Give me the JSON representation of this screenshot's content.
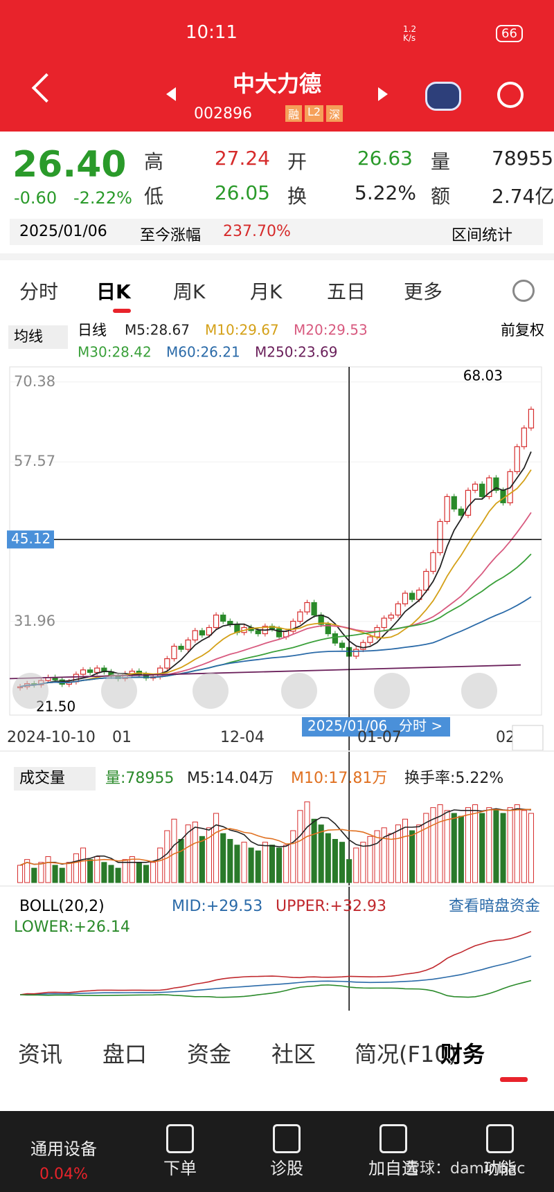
{
  "status": {
    "time": "10:11",
    "speed": "1.2 K/s",
    "battery": "66"
  },
  "header": {
    "title": "中大力德",
    "code": "002896",
    "tags": [
      "融",
      "L2",
      "深"
    ]
  },
  "quote": {
    "price": "26.40",
    "change": "-0.60",
    "pct": "-2.22%",
    "fields": [
      [
        "高",
        "27.24"
      ],
      [
        "开",
        "26.63"
      ],
      [
        "量",
        "78955"
      ],
      [
        "低",
        "26.05"
      ],
      [
        "换",
        "5.22%"
      ],
      [
        "额",
        "2.74亿"
      ]
    ],
    "date": "2025/01/06",
    "since_label": "至今涨幅",
    "since": "237.70%",
    "stats": "区间统计"
  },
  "tabs": [
    "分时",
    "日K",
    "周K",
    "月K",
    "五日",
    "更多"
  ],
  "ma_legend": {
    "selector": "均线",
    "kind": "日线",
    "items": [
      "M5:28.67",
      "M10:29.67",
      "M20:29.53",
      "M30:28.42",
      "M60:26.21",
      "M250:23.69"
    ],
    "adjust": "前复权"
  },
  "price_chart": {
    "ylim": [
      16.96,
      72.8
    ],
    "yticks": [
      70.38,
      57.57,
      45.12,
      31.96
    ],
    "cursor": 45.12,
    "high_label": "68.03",
    "low_label": "21.50",
    "dates": [
      "2024-10-10",
      "01",
      "12-04",
      "01-07",
      "02"
    ],
    "cursor_date": "2025/01/06",
    "cursor_link": "分时 >",
    "closes": [
      21.5,
      22,
      21.8,
      22.5,
      23,
      22.6,
      21.9,
      22.3,
      23.5,
      24.2,
      23.8,
      24.5,
      23.9,
      23.2,
      22.8,
      23.6,
      24,
      23.5,
      22.9,
      23.1,
      24.5,
      26,
      28,
      27.5,
      29,
      30.5,
      29.8,
      31,
      33,
      32,
      31.5,
      30.2,
      31,
      30.5,
      30,
      31.2,
      30.8,
      29.5,
      30.4,
      32,
      33.5,
      35,
      33,
      31.5,
      30,
      28.5,
      27.8,
      26.4,
      27.5,
      28.6,
      29.5,
      31,
      32.5,
      33,
      34.8,
      36.5,
      35.5,
      37,
      40,
      43,
      48,
      52,
      50,
      49,
      53,
      54,
      52,
      55,
      53,
      51,
      56,
      60,
      63,
      66
    ]
  },
  "volume_chart": {
    "selector": "成交量",
    "items": [
      "量:78955",
      "M5:14.04万",
      "M10:17.81万",
      "换手率:5.22%"
    ],
    "ylim": [
      0,
      30
    ],
    "values": [
      6,
      8,
      5,
      7,
      9,
      6,
      5,
      7,
      10,
      12,
      8,
      9,
      7,
      6,
      5,
      8,
      9,
      7,
      6,
      7,
      12,
      18,
      22,
      15,
      20,
      21,
      16,
      19,
      24,
      17,
      15,
      13,
      14,
      12,
      11,
      14,
      13,
      12,
      13,
      18,
      25,
      28,
      22,
      20,
      17,
      15,
      14,
      8,
      12,
      14,
      16,
      18,
      19,
      17,
      20,
      22,
      18,
      20,
      24,
      26,
      27,
      25,
      24,
      23,
      26,
      27,
      24,
      26,
      25,
      24,
      26,
      27,
      25,
      24
    ]
  },
  "boll": {
    "selector": "BOLL(20,2)",
    "items": [
      "MID:+29.53",
      "UPPER:+32.93",
      "LOWER:+26.14"
    ],
    "link": "查看暗盘资金"
  },
  "bottom_tabs": [
    "资讯",
    "盘口",
    "资金",
    "社区",
    "简况(F10)",
    "财务"
  ],
  "nav": [
    [
      "通用设备",
      "0.04%"
    ],
    [
      "下单"
    ],
    [
      "诊股"
    ],
    [
      "加自选"
    ],
    [
      "功能"
    ]
  ],
  "watermark": "雪球：daminbac"
}
